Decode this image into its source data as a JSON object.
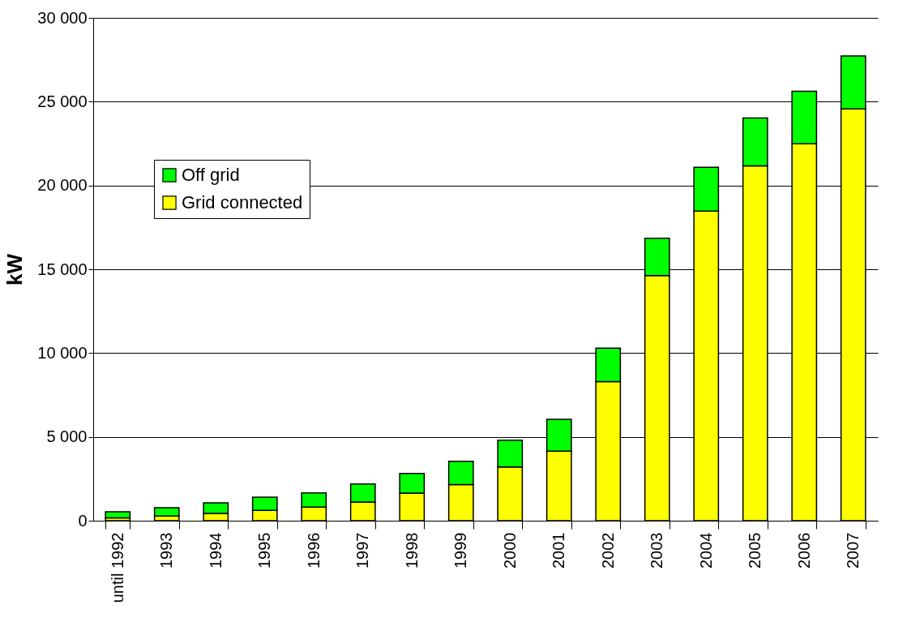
{
  "chart_data": {
    "type": "bar",
    "stacked": true,
    "ylabel": "kW",
    "categories": [
      "until 1992",
      "1993",
      "1994",
      "1995",
      "1996",
      "1997",
      "1998",
      "1999",
      "2000",
      "2001",
      "2002",
      "2003",
      "2004",
      "2005",
      "2006",
      "2007"
    ],
    "series": [
      {
        "name": "Grid connected",
        "color": "#ffff00",
        "values": [
          170,
          280,
          430,
          620,
          810,
          1110,
          1650,
          2150,
          3200,
          4150,
          8300,
          14620,
          18470,
          21170,
          22490,
          24570
        ]
      },
      {
        "name": "Off grid",
        "color": "#00ff00",
        "values": [
          360,
          490,
          630,
          780,
          850,
          1080,
          1170,
          1400,
          1600,
          1900,
          2000,
          2230,
          2610,
          2860,
          3130,
          3150
        ]
      }
    ],
    "ylim": [
      0,
      30000
    ],
    "yticks": [
      0,
      {
        "value": 5000,
        "label": "5 000"
      },
      {
        "value": 10000,
        "label": "10 000"
      },
      {
        "value": 15000,
        "label": "15 000"
      },
      {
        "value": 20000,
        "label": "20 000"
      },
      {
        "value": 25000,
        "label": "25 000"
      },
      {
        "value": 30000,
        "label": "30 000"
      }
    ],
    "grid": "y",
    "legend": "top left"
  }
}
